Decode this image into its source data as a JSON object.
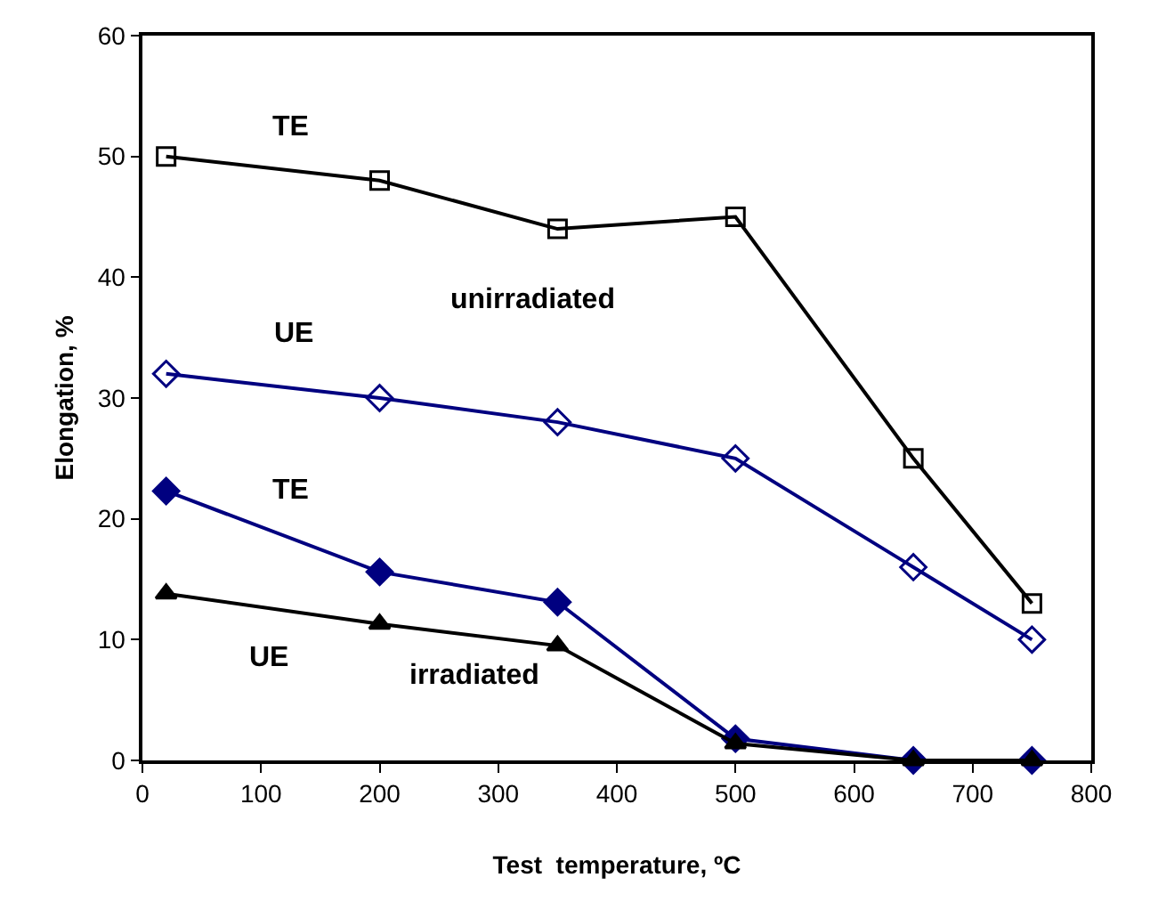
{
  "chart_data": {
    "type": "line",
    "xlabel": "Test  temperature, ºC",
    "ylabel": "Elongation, %",
    "x": [
      20,
      200,
      350,
      500,
      650,
      750
    ],
    "series": [
      {
        "name": "TE",
        "color": "#000000",
        "marker": "square",
        "values": [
          50,
          48,
          44,
          45,
          25,
          13
        ]
      },
      {
        "name": "UE",
        "color": "#000080",
        "marker": "diamond",
        "values": [
          32,
          30,
          28,
          25,
          16,
          10
        ]
      },
      {
        "name": "TE",
        "color": "#000080",
        "marker": "diamond",
        "values": [
          22.3,
          15.6,
          13.1,
          1.8,
          0,
          0
        ]
      },
      {
        "name": "UE",
        "color": "#000000",
        "marker": "triangle",
        "values": [
          13.8,
          11.3,
          9.5,
          1.4,
          0,
          0
        ]
      }
    ],
    "annotations": [
      "unirradiated",
      "irradiated"
    ],
    "xlim": [
      0,
      800
    ],
    "xticks": [
      0,
      100,
      200,
      300,
      400,
      500,
      600,
      700,
      800
    ],
    "ylim": [
      0,
      60
    ],
    "yticks": [
      0,
      10,
      20,
      30,
      40,
      50,
      60
    ],
    "grid": false,
    "legend": false,
    "line_style": "solid"
  }
}
